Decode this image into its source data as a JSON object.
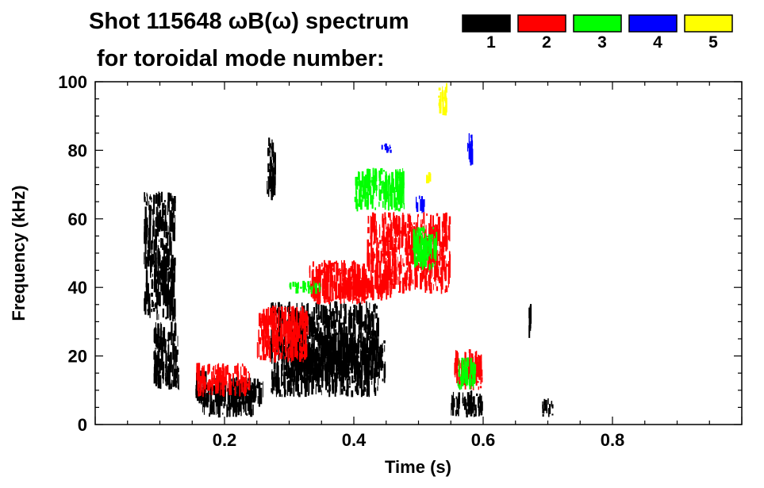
{
  "chart_data": {
    "type": "heatmap",
    "title_line1": "Shot 115648 ωB(ω) spectrum",
    "title_line2": "for toroidal mode number:",
    "xlabel": "Time (s)",
    "ylabel": "Frequency (kHz)",
    "xlim": [
      0.0,
      1.0
    ],
    "ylim": [
      0,
      100
    ],
    "x_ticks": [
      0.2,
      0.4,
      0.6,
      0.8
    ],
    "x_tick_labels": [
      "0.2",
      "0.4",
      "0.6",
      "0.8"
    ],
    "y_ticks": [
      0,
      20,
      40,
      60,
      80,
      100
    ],
    "y_tick_labels": [
      "0",
      "20",
      "40",
      "60",
      "80",
      "100"
    ],
    "legend": [
      {
        "label": "1",
        "color": "#000000"
      },
      {
        "label": "2",
        "color": "#ff0000"
      },
      {
        "label": "3",
        "color": "#00ff00"
      },
      {
        "label": "4",
        "color": "#0000ff"
      },
      {
        "label": "5",
        "color": "#ffff00"
      }
    ],
    "legend_placement": "top-right",
    "grid": false,
    "series": [
      {
        "mode": "1",
        "color": "#000000",
        "bands": [
          {
            "t": [
              0.075,
              0.125
            ],
            "f": [
              30,
              68
            ]
          },
          {
            "t": [
              0.09,
              0.13
            ],
            "f": [
              10,
              30
            ]
          },
          {
            "t": [
              0.155,
              0.175
            ],
            "f": [
              5,
              16
            ]
          },
          {
            "t": [
              0.165,
              0.25
            ],
            "f": [
              2,
              12
            ]
          },
          {
            "t": [
              0.185,
              0.26
            ],
            "f": [
              5,
              14
            ]
          },
          {
            "t": [
              0.265,
              0.28
            ],
            "f": [
              65,
              84
            ]
          },
          {
            "t": [
              0.27,
              0.44
            ],
            "f": [
              8,
              36
            ]
          },
          {
            "t": [
              0.3,
              0.45
            ],
            "f": [
              12,
              26
            ]
          },
          {
            "t": [
              0.55,
              0.6
            ],
            "f": [
              2,
              10
            ]
          },
          {
            "t": [
              0.67,
              0.675
            ],
            "f": [
              25,
              36
            ]
          },
          {
            "t": [
              0.69,
              0.71
            ],
            "f": [
              2,
              8
            ]
          }
        ]
      },
      {
        "mode": "2",
        "color": "#ff0000",
        "bands": [
          {
            "t": [
              0.155,
              0.24
            ],
            "f": [
              8,
              18
            ]
          },
          {
            "t": [
              0.25,
              0.33
            ],
            "f": [
              18,
              35
            ]
          },
          {
            "t": [
              0.33,
              0.42
            ],
            "f": [
              35,
              48
            ]
          },
          {
            "t": [
              0.38,
              0.46
            ],
            "f": [
              36,
              44
            ]
          },
          {
            "t": [
              0.42,
              0.55
            ],
            "f": [
              38,
              62
            ]
          },
          {
            "t": [
              0.555,
              0.6
            ],
            "f": [
              10,
              22
            ]
          }
        ]
      },
      {
        "mode": "3",
        "color": "#00ff00",
        "bands": [
          {
            "t": [
              0.3,
              0.35
            ],
            "f": [
              38,
              42
            ]
          },
          {
            "t": [
              0.4,
              0.48
            ],
            "f": [
              62,
              75
            ]
          },
          {
            "t": [
              0.49,
              0.53
            ],
            "f": [
              45,
              58
            ]
          },
          {
            "t": [
              0.56,
              0.59
            ],
            "f": [
              10,
              20
            ]
          }
        ]
      },
      {
        "mode": "4",
        "color": "#0000ff",
        "bands": [
          {
            "t": [
              0.44,
              0.46
            ],
            "f": [
              79,
              82
            ]
          },
          {
            "t": [
              0.495,
              0.51
            ],
            "f": [
              61,
              67
            ]
          },
          {
            "t": [
              0.575,
              0.585
            ],
            "f": [
              75,
              85
            ]
          }
        ]
      },
      {
        "mode": "5",
        "color": "#ffff00",
        "bands": [
          {
            "t": [
              0.53,
              0.545
            ],
            "f": [
              90,
              100
            ]
          },
          {
            "t": [
              0.51,
              0.52
            ],
            "f": [
              70,
              74
            ]
          }
        ]
      }
    ]
  }
}
